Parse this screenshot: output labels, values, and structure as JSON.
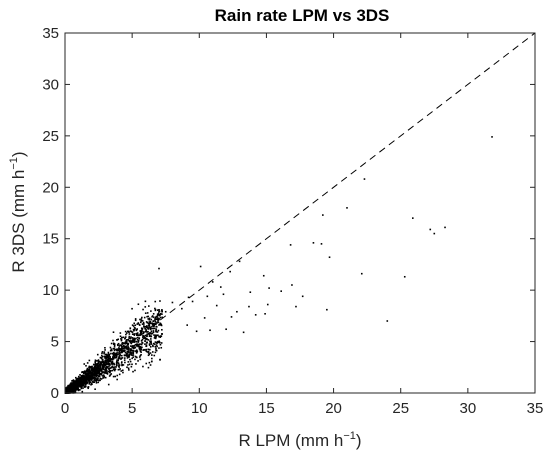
{
  "chart_data": {
    "type": "scatter",
    "title": "Rain rate LPM vs 3DS",
    "xlabel": {
      "main": "R LPM (mm h",
      "sup": "−1",
      "close": ")"
    },
    "ylabel": {
      "main": "R 3DS (mm h",
      "sup": "−1",
      "close": ")"
    },
    "xlim": [
      0,
      35
    ],
    "ylim": [
      0,
      35
    ],
    "xticks": [
      "0",
      "5",
      "10",
      "15",
      "20",
      "25",
      "30",
      "35"
    ],
    "yticks": [
      "0",
      "5",
      "10",
      "15",
      "20",
      "25",
      "30",
      "35"
    ],
    "grid": false,
    "reference_line": {
      "style": "dashed",
      "from": [
        0,
        0
      ],
      "to": [
        35,
        35
      ]
    },
    "marker_color": "#000000",
    "points": [
      [
        31.8,
        24.9
      ],
      [
        22.3,
        20.8
      ],
      [
        21.0,
        18.0
      ],
      [
        19.2,
        17.3
      ],
      [
        16.8,
        14.4
      ],
      [
        18.5,
        14.6
      ],
      [
        19.1,
        14.5
      ],
      [
        19.7,
        13.2
      ],
      [
        25.9,
        17.0
      ],
      [
        27.2,
        15.9
      ],
      [
        27.5,
        15.5
      ],
      [
        28.3,
        16.1
      ],
      [
        22.1,
        11.6
      ],
      [
        25.3,
        11.3
      ],
      [
        24.0,
        7.0
      ],
      [
        17.7,
        9.4
      ],
      [
        17.2,
        8.4
      ],
      [
        19.5,
        8.1
      ],
      [
        16.9,
        10.5
      ],
      [
        16.1,
        9.9
      ],
      [
        15.2,
        10.2
      ],
      [
        14.8,
        11.4
      ],
      [
        13.0,
        12.8
      ],
      [
        12.3,
        11.8
      ],
      [
        11.0,
        10.8
      ],
      [
        13.7,
        8.4
      ],
      [
        14.2,
        7.6
      ],
      [
        12.4,
        7.4
      ],
      [
        15.1,
        8.6
      ],
      [
        14.9,
        7.7
      ],
      [
        11.8,
        9.6
      ],
      [
        10.6,
        9.4
      ],
      [
        10.1,
        12.3
      ],
      [
        9.5,
        8.9
      ],
      [
        9.2,
        9.3
      ],
      [
        8.7,
        8.2
      ],
      [
        8.0,
        8.8
      ],
      [
        7.5,
        7.9
      ],
      [
        7.0,
        12.1
      ],
      [
        6.8,
        7.4
      ],
      [
        9.1,
        6.6
      ],
      [
        10.4,
        7.3
      ],
      [
        11.3,
        8.5
      ],
      [
        12.0,
        6.2
      ],
      [
        13.3,
        5.9
      ],
      [
        12.8,
        7.9
      ],
      [
        10.8,
        6.1
      ],
      [
        9.8,
        6.0
      ],
      [
        11.6,
        10.3
      ],
      [
        13.8,
        9.8
      ]
    ]
  }
}
